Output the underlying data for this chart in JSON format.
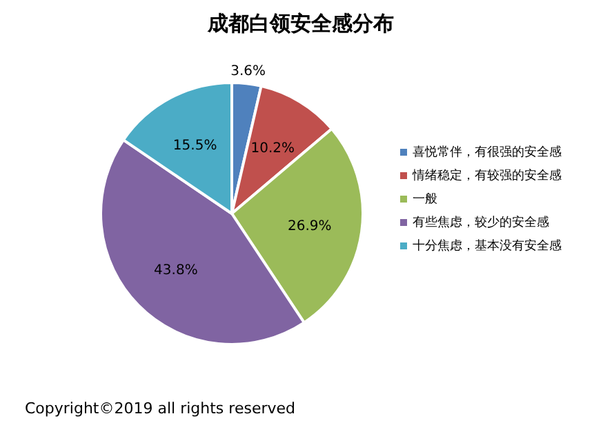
{
  "chart_data": {
    "type": "pie",
    "title": "成都白领安全感分布",
    "categories": [
      "喜悦常伴，有很强的安全感",
      "情绪稳定，有较强的安全感",
      "一般",
      "有些焦虑，较少的安全感",
      "十分焦虑，基本没有安全感"
    ],
    "values": [
      3.6,
      10.2,
      26.9,
      43.8,
      15.5
    ],
    "value_labels": [
      "3.6%",
      "10.2%",
      "26.9%",
      "43.8%",
      "15.5%"
    ],
    "colors": [
      "#4f81bd",
      "#c0504d",
      "#9bbb59",
      "#8064a2",
      "#4bacc6"
    ],
    "legend": "right",
    "annotations": [
      "Copyright©2019 all rights reserved"
    ]
  }
}
